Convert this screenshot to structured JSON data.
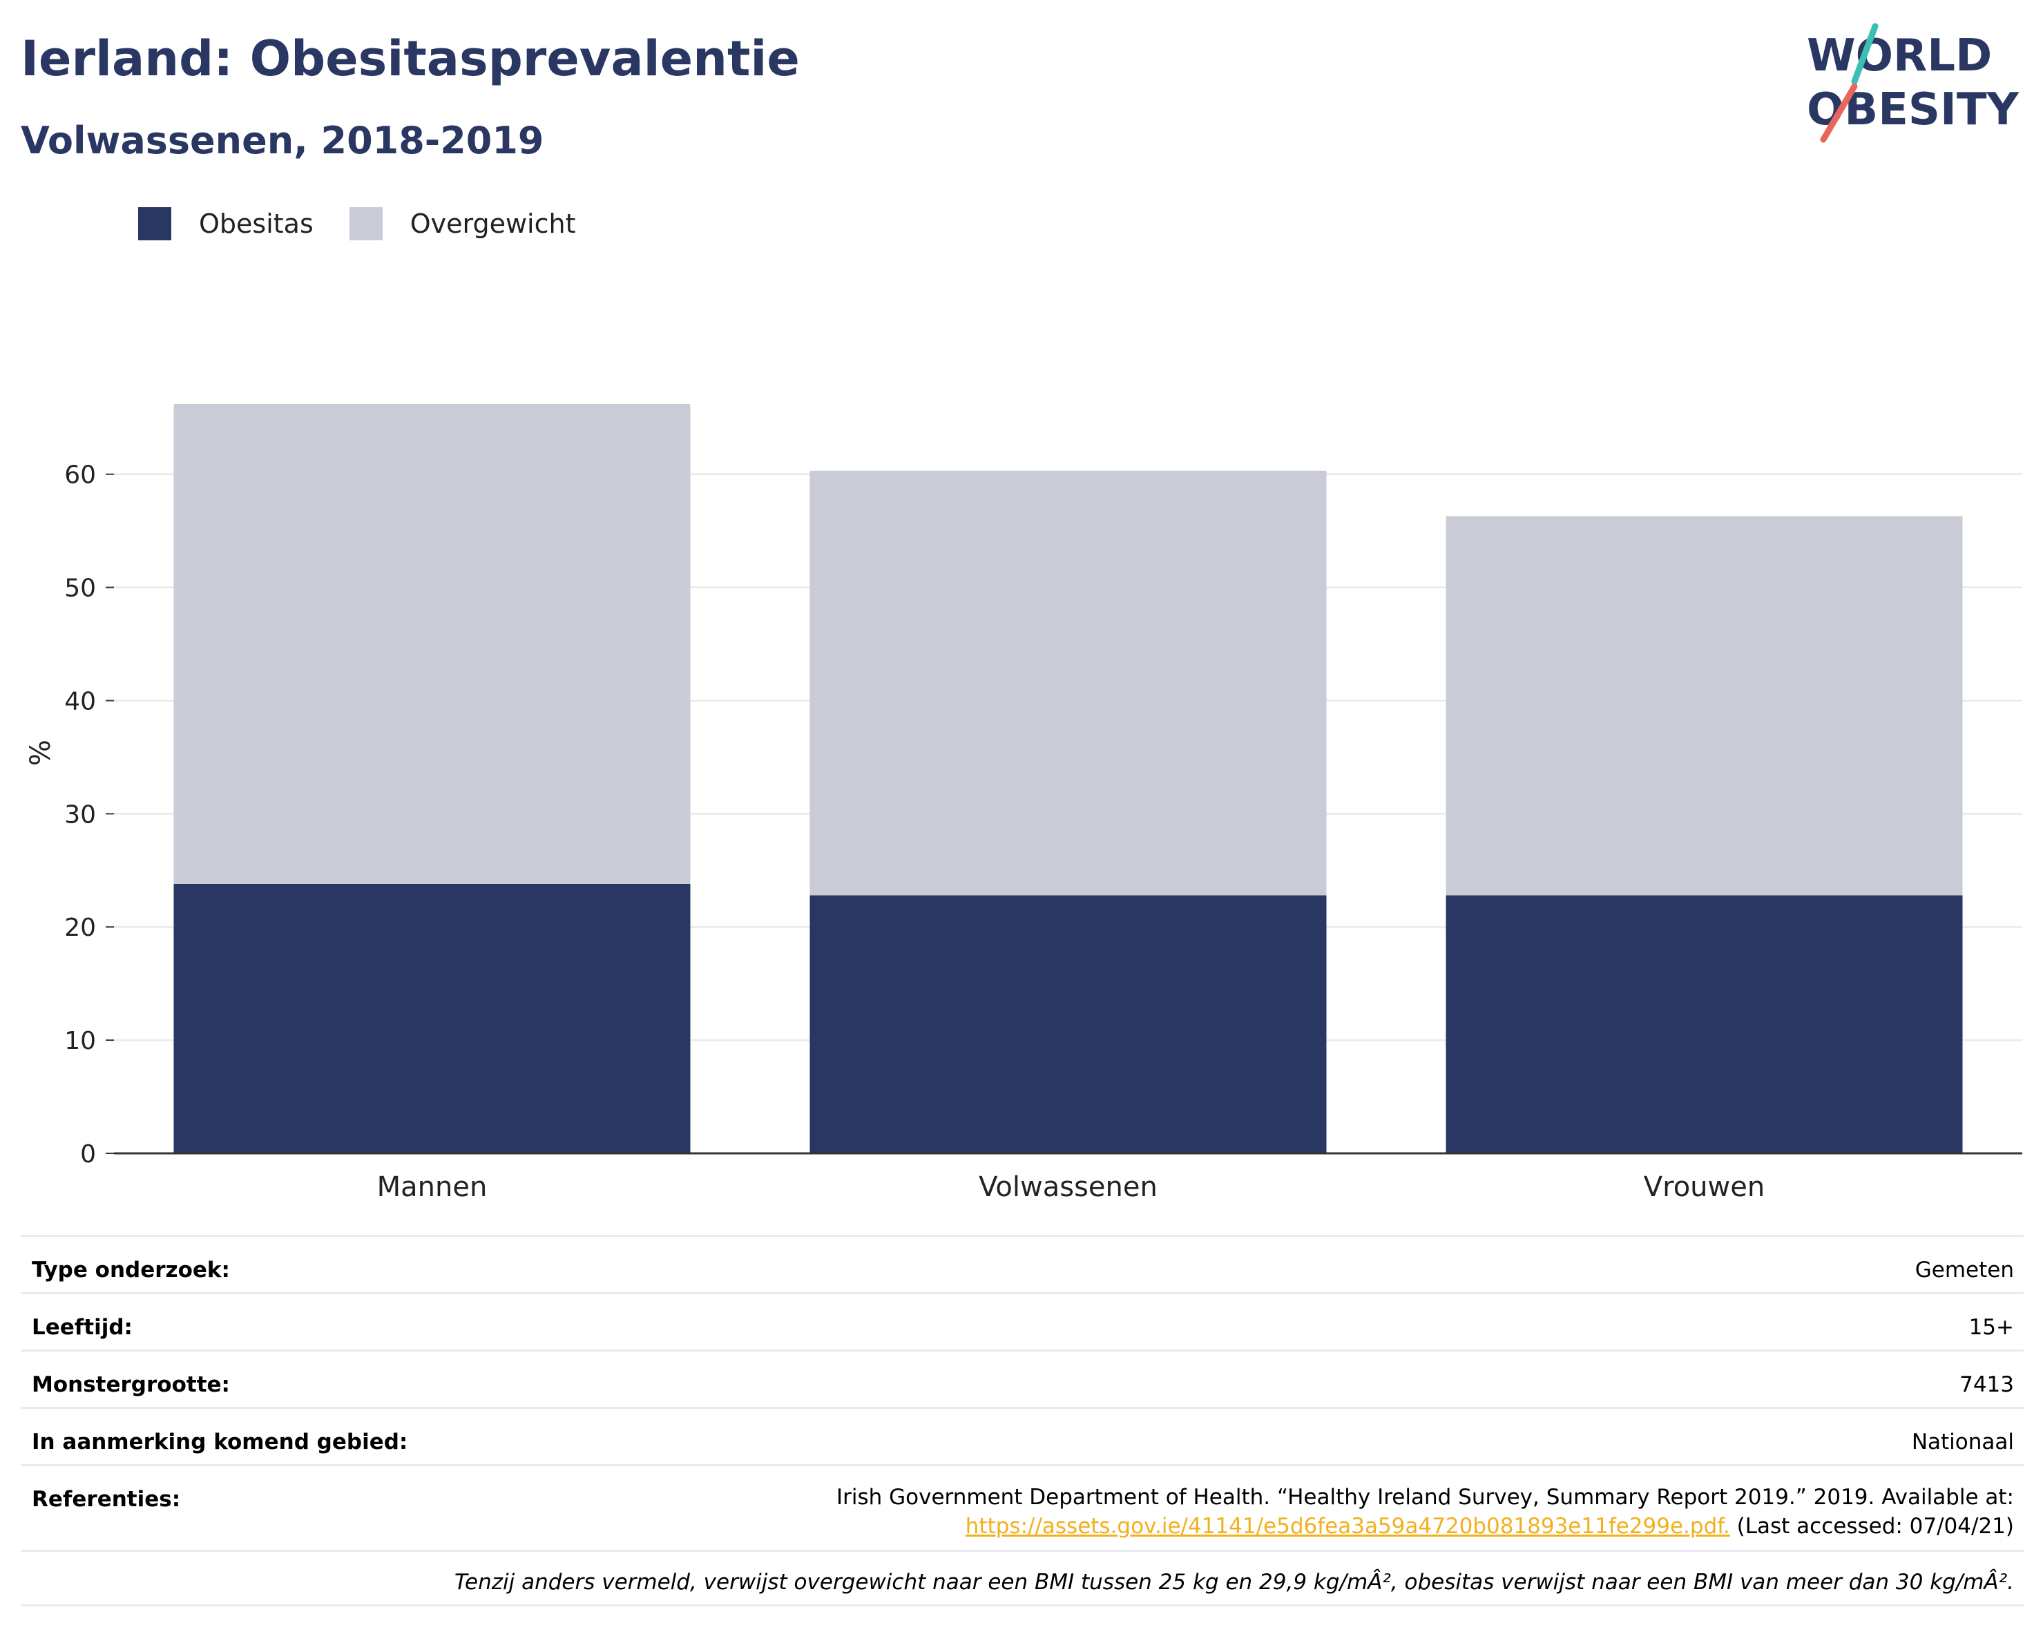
{
  "header": {
    "title": "Ierland: Obesitasprevalentie",
    "subtitle": "Volwassenen, 2018-2019"
  },
  "logo": {
    "line1": "WORLD",
    "line2": "OBESITY"
  },
  "legend": [
    {
      "label": "Obesitas",
      "color": "#2a3763"
    },
    {
      "label": "Overgewicht",
      "color": "#c9cbd7"
    }
  ],
  "chart_data": {
    "type": "bar",
    "stacked": true,
    "categories": [
      "Mannen",
      "Volwassenen",
      "Vrouwen"
    ],
    "series": [
      {
        "name": "Obesitas",
        "color": "#2a3763",
        "values": [
          23.8,
          22.8,
          22.8
        ]
      },
      {
        "name": "Overgewicht",
        "color": "#c9cbd7",
        "values": [
          42.4,
          37.5,
          33.5
        ]
      }
    ],
    "totals": [
      66.2,
      60.3,
      56.3
    ],
    "ylabel": "%",
    "xlabel": "",
    "ylim": [
      0,
      72
    ],
    "yticks": [
      0,
      10,
      20,
      30,
      40,
      50,
      60
    ],
    "grid": true,
    "legend_position": "top-left"
  },
  "meta": {
    "rows": [
      {
        "label": "Type onderzoek:",
        "value": "Gemeten"
      },
      {
        "label": "Leeftijd:",
        "value": "15+"
      },
      {
        "label": "Monstergrootte:",
        "value": "7413"
      },
      {
        "label": "In aanmerking komend gebied:",
        "value": "Nationaal"
      }
    ],
    "references": {
      "label": "Referenties:",
      "line1": "Irish Government Department of Health. “Healthy Ireland Survey, Summary Report 2019.” 2019. Available at:",
      "link": "https://assets.gov.ie/41141/e5d6fea3a59a4720b081893e11fe299e.pdf.",
      "suffix": " (Last accessed: 07/04/21)"
    },
    "footnote": "Tenzij anders vermeld, verwijst overgewicht naar een BMI tussen 25 kg en 29,9 kg/mÂ², obesitas verwijst naar een BMI van meer dan 30 kg/mÂ²."
  }
}
